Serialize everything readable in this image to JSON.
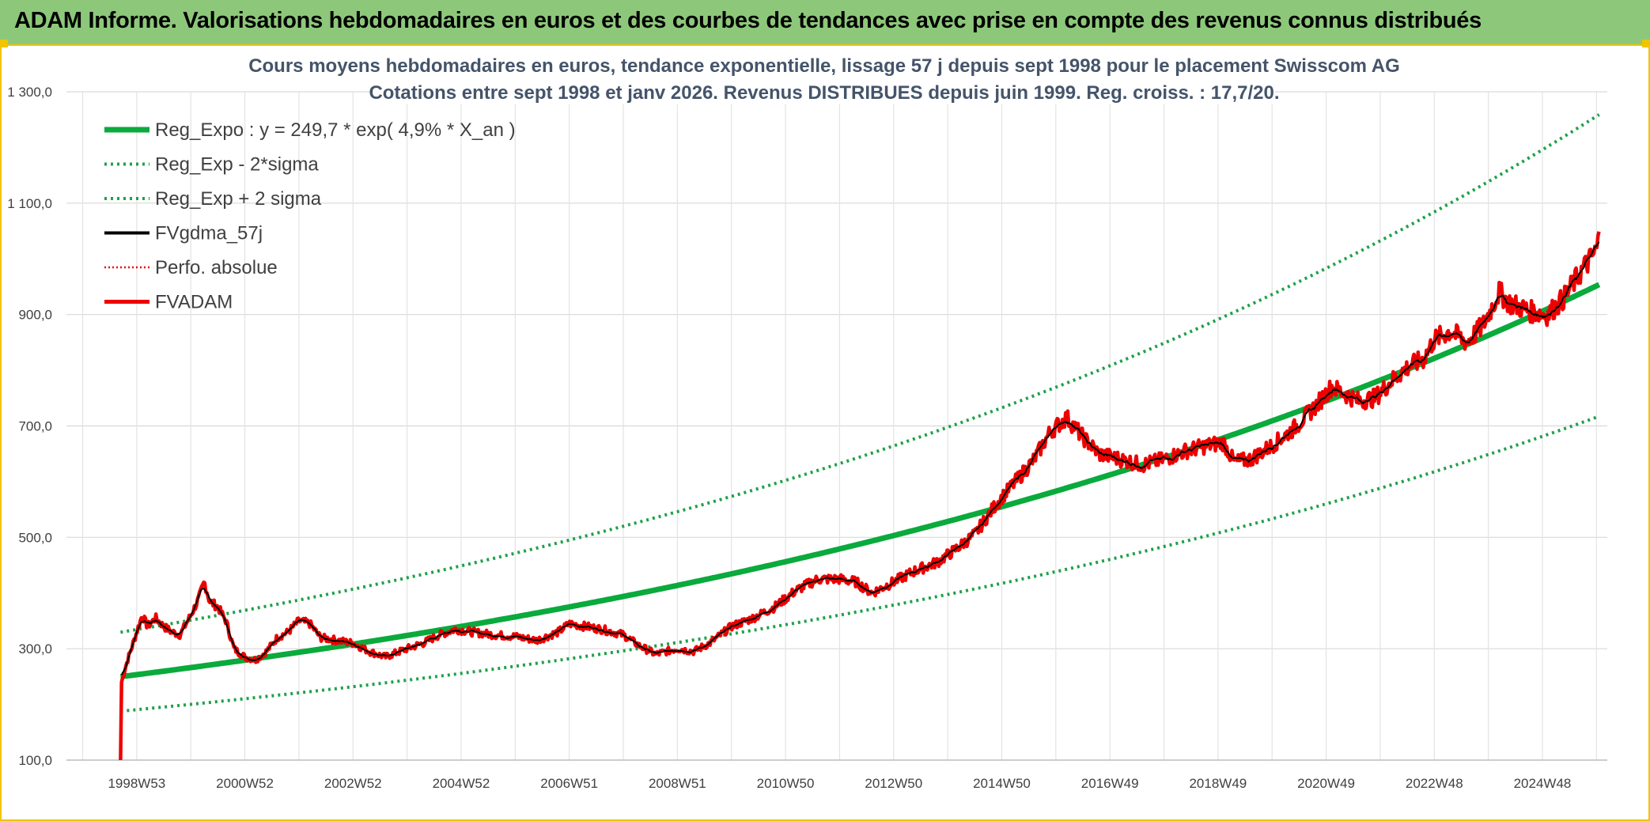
{
  "header": {
    "title": "ADAM Informe. Valorisations hebdomadaires en euros et des courbes de tendances avec prise en compte des revenus connus distribués"
  },
  "colors": {
    "banner": "#8dc87a",
    "accent_yellow": "#f0c400",
    "trend_green": "#0aaa3c",
    "band_green": "#1fa14a",
    "gdma_black": "#000000",
    "fvadam_red": "#ee0000"
  },
  "chart_data": {
    "type": "line",
    "title_line1": "Cours moyens hebdomadaires en euros, tendance exponentielle, lissage 57 j depuis sept 1998 pour le placement Swisscom AG",
    "title_line2": "Cotations entre sept 1998 et janv 2026. Revenus DISTRIBUES depuis juin 1999. Reg. croiss. : 17,7/20.",
    "x_start_year": 1998.7,
    "x_end_year": 2026.05,
    "x_range": [
      1997.7,
      2026.2
    ],
    "ylim": [
      100,
      1300
    ],
    "y_ticks": [
      100,
      300,
      500,
      700,
      900,
      1100,
      1300
    ],
    "y_tick_labels": [
      "100,0",
      "300,0",
      "500,0",
      "700,0",
      "900,0",
      "1 100,0",
      "1 300,0"
    ],
    "x_ticks": [
      {
        "label": "1998W53",
        "year": 1999.0
      },
      {
        "label": "2000W52",
        "year": 2001.0
      },
      {
        "label": "2002W52",
        "year": 2003.0
      },
      {
        "label": "2004W52",
        "year": 2005.0
      },
      {
        "label": "2006W51",
        "year": 2007.0
      },
      {
        "label": "2008W51",
        "year": 2009.0
      },
      {
        "label": "2010W50",
        "year": 2011.0
      },
      {
        "label": "2012W50",
        "year": 2013.0
      },
      {
        "label": "2014W50",
        "year": 2015.0
      },
      {
        "label": "2016W49",
        "year": 2017.0
      },
      {
        "label": "2018W49",
        "year": 2019.0
      },
      {
        "label": "2020W49",
        "year": 2021.0
      },
      {
        "label": "2022W48",
        "year": 2023.0
      },
      {
        "label": "2024W48",
        "year": 2025.0
      }
    ],
    "regression": {
      "a": 249.7,
      "rate": 0.049
    },
    "band_factor_low": 0.752,
    "band_factor_high": 1.32,
    "legend": [
      {
        "key": "reg",
        "label": "Reg_Expo : y = 249,7 * exp( 4,9% *  X_an )"
      },
      {
        "key": "low",
        "label": "Reg_Exp - 2*sigma"
      },
      {
        "key": "high",
        "label": "Reg_Exp + 2 sigma"
      },
      {
        "key": "gdma",
        "label": "FVgdma_57j"
      },
      {
        "key": "perf",
        "label": "Perfo. absolue"
      },
      {
        "key": "fvadam",
        "label": "FVADAM"
      }
    ],
    "fvadam_anchors": [
      [
        1998.7,
        100
      ],
      [
        1998.72,
        240
      ],
      [
        1998.8,
        270
      ],
      [
        1998.9,
        300
      ],
      [
        1999.0,
        330
      ],
      [
        1999.1,
        360
      ],
      [
        1999.2,
        340
      ],
      [
        1999.35,
        355
      ],
      [
        1999.5,
        340
      ],
      [
        1999.65,
        330
      ],
      [
        1999.8,
        325
      ],
      [
        2000.0,
        360
      ],
      [
        2000.15,
        390
      ],
      [
        2000.25,
        420
      ],
      [
        2000.35,
        385
      ],
      [
        2000.5,
        375
      ],
      [
        2000.65,
        350
      ],
      [
        2000.8,
        300
      ],
      [
        2001.0,
        285
      ],
      [
        2001.2,
        280
      ],
      [
        2001.4,
        295
      ],
      [
        2001.6,
        320
      ],
      [
        2001.8,
        330
      ],
      [
        2002.0,
        350
      ],
      [
        2002.2,
        345
      ],
      [
        2002.4,
        320
      ],
      [
        2002.7,
        315
      ],
      [
        2003.0,
        310
      ],
      [
        2003.3,
        295
      ],
      [
        2003.6,
        285
      ],
      [
        2004.0,
        300
      ],
      [
        2004.3,
        310
      ],
      [
        2004.6,
        325
      ],
      [
        2004.9,
        335
      ],
      [
        2005.2,
        330
      ],
      [
        2005.6,
        325
      ],
      [
        2006.0,
        322
      ],
      [
        2006.4,
        315
      ],
      [
        2006.8,
        330
      ],
      [
        2007.0,
        345
      ],
      [
        2007.3,
        340
      ],
      [
        2007.6,
        335
      ],
      [
        2008.0,
        325
      ],
      [
        2008.3,
        305
      ],
      [
        2008.6,
        290
      ],
      [
        2009.0,
        300
      ],
      [
        2009.3,
        295
      ],
      [
        2009.6,
        310
      ],
      [
        2010.0,
        340
      ],
      [
        2010.4,
        355
      ],
      [
        2010.8,
        375
      ],
      [
        2011.2,
        405
      ],
      [
        2011.6,
        425
      ],
      [
        2012.0,
        425
      ],
      [
        2012.3,
        420
      ],
      [
        2012.6,
        400
      ],
      [
        2013.0,
        420
      ],
      [
        2013.4,
        440
      ],
      [
        2013.8,
        455
      ],
      [
        2014.1,
        475
      ],
      [
        2014.5,
        505
      ],
      [
        2014.9,
        560
      ],
      [
        2015.3,
        605
      ],
      [
        2015.6,
        640
      ],
      [
        2015.9,
        690
      ],
      [
        2016.2,
        715
      ],
      [
        2016.5,
        680
      ],
      [
        2016.8,
        650
      ],
      [
        2017.2,
        640
      ],
      [
        2017.6,
        630
      ],
      [
        2018.0,
        640
      ],
      [
        2018.4,
        655
      ],
      [
        2018.8,
        665
      ],
      [
        2019.1,
        670
      ],
      [
        2019.3,
        635
      ],
      [
        2019.6,
        640
      ],
      [
        2020.0,
        665
      ],
      [
        2020.4,
        695
      ],
      [
        2020.8,
        735
      ],
      [
        2021.1,
        770
      ],
      [
        2021.3,
        760
      ],
      [
        2021.6,
        745
      ],
      [
        2021.9,
        750
      ],
      [
        2022.2,
        780
      ],
      [
        2022.5,
        805
      ],
      [
        2022.8,
        820
      ],
      [
        2023.0,
        855
      ],
      [
        2023.3,
        870
      ],
      [
        2023.6,
        850
      ],
      [
        2023.9,
        880
      ],
      [
        2024.2,
        940
      ],
      [
        2024.4,
        920
      ],
      [
        2024.8,
        905
      ],
      [
        2025.1,
        900
      ],
      [
        2025.4,
        930
      ],
      [
        2025.7,
        975
      ],
      [
        2026.0,
        1015
      ],
      [
        2026.05,
        1040
      ]
    ]
  }
}
